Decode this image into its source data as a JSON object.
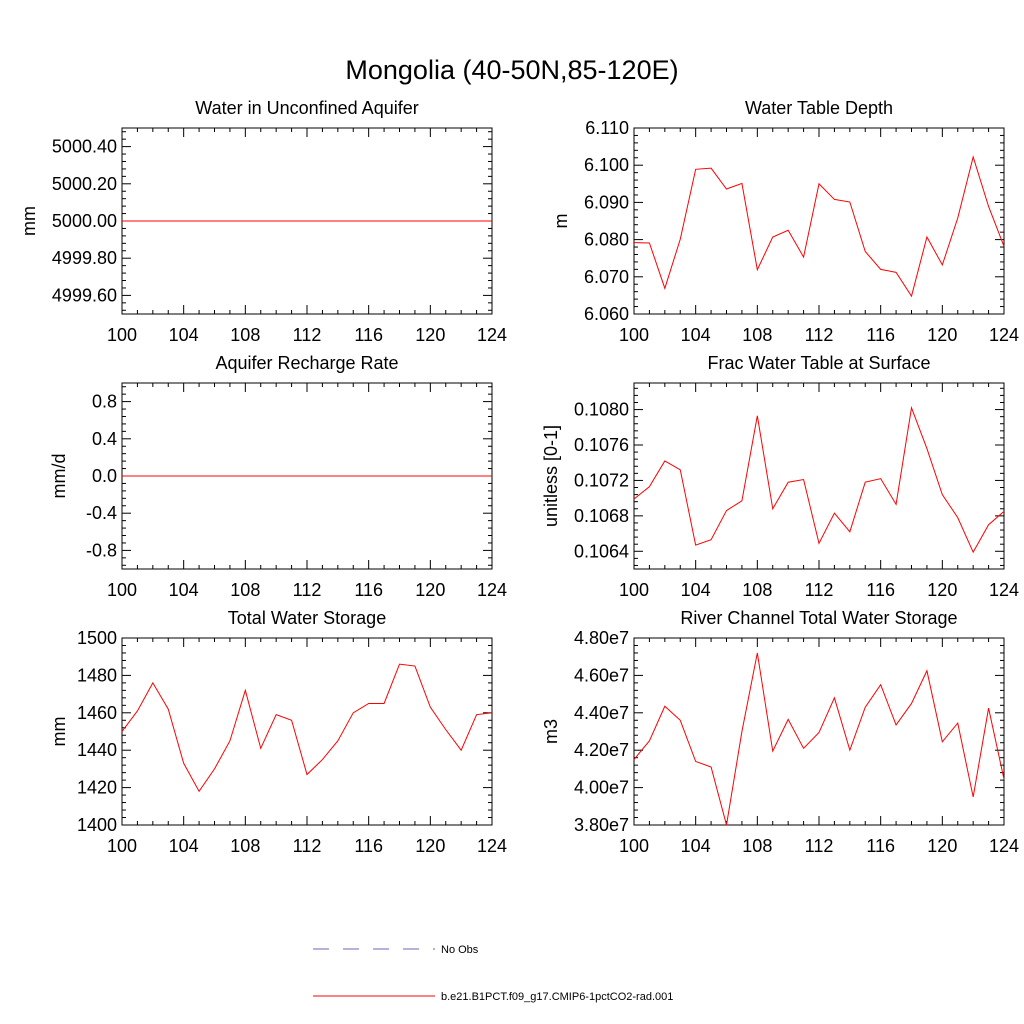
{
  "figure": {
    "title": "Mongolia (40-50N,85-120E)"
  },
  "legend": {
    "items": [
      {
        "label": "No Obs",
        "color": "#6a6ab4",
        "dash": "dashed"
      },
      {
        "label": "b.e21.B1PCT.f09_g17.CMIP6-1pctCO2-rad.001",
        "color": "#ff0000",
        "dash": "solid"
      }
    ]
  },
  "chart_data": [
    {
      "type": "line",
      "title": "Water in Unconfined Aquifer",
      "ylabel": "mm",
      "xlim": [
        100,
        124
      ],
      "ylim": [
        4999.5,
        5000.5
      ],
      "xticks": [
        100,
        104,
        108,
        112,
        116,
        120,
        124
      ],
      "yticks": [
        4999.6,
        4999.8,
        5000.0,
        5000.2,
        5000.4
      ],
      "ytick_labels": [
        "4999.60",
        "4999.80",
        "5000.00",
        "5000.20",
        "5000.40"
      ],
      "series": [
        {
          "color": "#ff0000",
          "x": [
            100,
            101,
            102,
            103,
            104,
            105,
            106,
            107,
            108,
            109,
            110,
            111,
            112,
            113,
            114,
            115,
            116,
            117,
            118,
            119,
            120,
            121,
            122,
            123,
            124
          ],
          "values": [
            5000,
            5000,
            5000,
            5000,
            5000,
            5000,
            5000,
            5000,
            5000,
            5000,
            5000,
            5000,
            5000,
            5000,
            5000,
            5000,
            5000,
            5000,
            5000,
            5000,
            5000,
            5000,
            5000,
            5000,
            5000
          ]
        }
      ]
    },
    {
      "type": "line",
      "title": "Water Table Depth",
      "ylabel": "m",
      "xlim": [
        100,
        124
      ],
      "ylim": [
        6.06,
        6.11
      ],
      "xticks": [
        100,
        104,
        108,
        112,
        116,
        120,
        124
      ],
      "yticks": [
        6.06,
        6.07,
        6.08,
        6.09,
        6.1,
        6.11
      ],
      "ytick_labels": [
        "6.060",
        "6.070",
        "6.080",
        "6.090",
        "6.100",
        "6.110"
      ],
      "series": [
        {
          "color": "#ff0000",
          "x": [
            100,
            101,
            102,
            103,
            104,
            105,
            106,
            107,
            108,
            109,
            110,
            111,
            112,
            113,
            114,
            115,
            116,
            117,
            118,
            119,
            120,
            121,
            122,
            123,
            124
          ],
          "values": [
            6.0792,
            6.0791,
            6.0669,
            6.0801,
            6.0989,
            6.0992,
            6.0936,
            6.0951,
            6.0719,
            6.0807,
            6.0825,
            6.0753,
            6.095,
            6.0908,
            6.0901,
            6.0768,
            6.072,
            6.0712,
            6.0648,
            6.0807,
            6.0732,
            6.0858,
            6.1022,
            6.0889,
            6.0782
          ]
        }
      ]
    },
    {
      "type": "line",
      "title": "Aquifer Recharge Rate",
      "ylabel": "mm/d",
      "xlim": [
        100,
        124
      ],
      "ylim": [
        -1.0,
        1.0
      ],
      "xticks": [
        100,
        104,
        108,
        112,
        116,
        120,
        124
      ],
      "yticks": [
        -0.8,
        -0.4,
        0.0,
        0.4,
        0.8
      ],
      "ytick_labels": [
        "-0.8",
        "-0.4",
        "0.0",
        "0.4",
        "0.8"
      ],
      "series": [
        {
          "color": "#ff0000",
          "x": [
            100,
            101,
            102,
            103,
            104,
            105,
            106,
            107,
            108,
            109,
            110,
            111,
            112,
            113,
            114,
            115,
            116,
            117,
            118,
            119,
            120,
            121,
            122,
            123,
            124
          ],
          "values": [
            0,
            0,
            0,
            0,
            0,
            0,
            0,
            0,
            0,
            0,
            0,
            0,
            0,
            0,
            0,
            0,
            0,
            0,
            0,
            0,
            0,
            0,
            0,
            0,
            0
          ]
        }
      ]
    },
    {
      "type": "line",
      "title": "Frac Water Table at Surface",
      "ylabel": "unitless [0-1]",
      "xlim": [
        100,
        124
      ],
      "ylim": [
        0.1062,
        0.1083
      ],
      "xticks": [
        100,
        104,
        108,
        112,
        116,
        120,
        124
      ],
      "yticks": [
        0.1064,
        0.1068,
        0.1072,
        0.1076,
        0.108
      ],
      "ytick_labels": [
        "0.1064",
        "0.1068",
        "0.1072",
        "0.1076",
        "0.1080"
      ],
      "series": [
        {
          "color": "#ff0000",
          "x": [
            100,
            101,
            102,
            103,
            104,
            105,
            106,
            107,
            108,
            109,
            110,
            111,
            112,
            113,
            114,
            115,
            116,
            117,
            118,
            119,
            120,
            121,
            122,
            123,
            124
          ],
          "values": [
            0.10699,
            0.10713,
            0.10742,
            0.10732,
            0.10647,
            0.10653,
            0.10686,
            0.10697,
            0.10793,
            0.10688,
            0.10718,
            0.10721,
            0.10649,
            0.10683,
            0.10662,
            0.10718,
            0.10722,
            0.10693,
            0.10802,
            0.10756,
            0.10704,
            0.10678,
            0.10639,
            0.1067,
            0.10685
          ]
        }
      ]
    },
    {
      "type": "line",
      "title": "Total Water Storage",
      "ylabel": "mm",
      "xlim": [
        100,
        124
      ],
      "ylim": [
        1400,
        1500
      ],
      "xticks": [
        100,
        104,
        108,
        112,
        116,
        120,
        124
      ],
      "yticks": [
        1400,
        1420,
        1440,
        1460,
        1480,
        1500
      ],
      "ytick_labels": [
        "1400",
        "1420",
        "1440",
        "1460",
        "1480",
        "1500"
      ],
      "series": [
        {
          "color": "#ff0000",
          "x": [
            100,
            101,
            102,
            103,
            104,
            105,
            106,
            107,
            108,
            109,
            110,
            111,
            112,
            113,
            114,
            115,
            116,
            117,
            118,
            119,
            120,
            121,
            122,
            123,
            124
          ],
          "values": [
            1450,
            1461,
            1476,
            1462,
            1433,
            1418,
            1430,
            1445,
            1472,
            1441,
            1459,
            1456,
            1427,
            1435,
            1445,
            1460,
            1465,
            1465,
            1486,
            1485,
            1463,
            1451,
            1440,
            1459,
            1460
          ]
        }
      ]
    },
    {
      "type": "line",
      "title": "River Channel Total Water Storage",
      "ylabel": "m3",
      "xlim": [
        100,
        124
      ],
      "ylim": [
        38000000,
        48000000
      ],
      "xticks": [
        100,
        104,
        108,
        112,
        116,
        120,
        124
      ],
      "yticks": [
        38000000,
        40000000,
        42000000,
        44000000,
        46000000,
        48000000
      ],
      "ytick_labels": [
        "3.80e7",
        "4.00e7",
        "4.20e7",
        "4.40e7",
        "4.60e7",
        "4.80e7"
      ],
      "series": [
        {
          "color": "#ff0000",
          "x": [
            100,
            101,
            102,
            103,
            104,
            105,
            106,
            107,
            108,
            109,
            110,
            111,
            112,
            113,
            114,
            115,
            116,
            117,
            118,
            119,
            120,
            121,
            122,
            123,
            124
          ],
          "values": [
            41500000,
            42500000,
            44350000,
            43600000,
            41400000,
            41100000,
            38000000,
            43000000,
            47200000,
            41950000,
            43650000,
            42100000,
            42950000,
            44800000,
            42000000,
            44300000,
            45500000,
            43350000,
            44500000,
            46250000,
            42450000,
            43450000,
            39500000,
            44250000,
            40450000
          ]
        }
      ]
    }
  ]
}
